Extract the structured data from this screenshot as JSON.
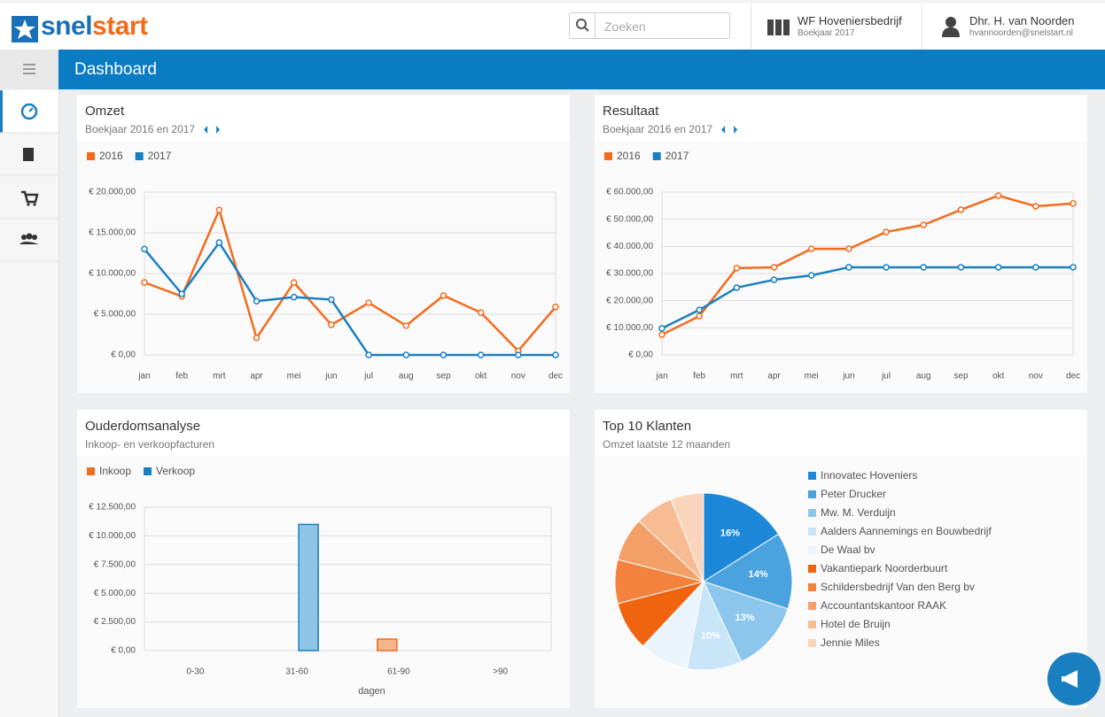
{
  "header": {
    "logo_part1": "snel",
    "logo_part2": "start",
    "search_placeholder": "Zoeken",
    "company": "WF Hoveniersbedrijf",
    "year": "Boekjaar 2017",
    "user": "Dhr. H. van Noorden",
    "email": "hvannoorden@snelstart.nl"
  },
  "page_title": "Dashboard",
  "chart_data": [
    {
      "type": "line",
      "title": "Omzet",
      "subtitle": "Boekjaar 2016 en 2017",
      "categories": [
        "jan",
        "feb",
        "mrt",
        "apr",
        "mei",
        "jun",
        "jul",
        "aug",
        "sep",
        "okt",
        "nov",
        "dec"
      ],
      "series": [
        {
          "name": "2016",
          "color": "#f26b1d",
          "values": [
            8900,
            7200,
            17800,
            2100,
            8900,
            3700,
            6400,
            3600,
            7300,
            5200,
            500,
            5900
          ]
        },
        {
          "name": "2017",
          "color": "#1a7fc1",
          "values": [
            13000,
            7500,
            13800,
            6600,
            7100,
            6800,
            0,
            0,
            0,
            0,
            0,
            0
          ]
        }
      ],
      "ylim": [
        0,
        20000
      ],
      "yticks": [
        {
          "value": 0,
          "label": "€ 0,00"
        },
        {
          "value": 5000,
          "label": "€ 5.000,00"
        },
        {
          "value": 10000,
          "label": "€ 10.000,00"
        },
        {
          "value": 15000,
          "label": "€ 15.000,00"
        },
        {
          "value": 20000,
          "label": "€ 20.000,00"
        }
      ],
      "grid": true
    },
    {
      "type": "line",
      "title": "Resultaat",
      "subtitle": "Boekjaar 2016 en 2017",
      "categories": [
        "jan",
        "feb",
        "mrt",
        "apr",
        "mei",
        "jun",
        "jul",
        "aug",
        "sep",
        "okt",
        "nov",
        "dec"
      ],
      "series": [
        {
          "name": "2016",
          "color": "#f26b1d",
          "values": [
            7500,
            14300,
            32000,
            32300,
            39100,
            39100,
            45300,
            47900,
            53500,
            58700,
            54800,
            55800
          ]
        },
        {
          "name": "2017",
          "color": "#1a7fc1",
          "values": [
            9800,
            16600,
            24800,
            27700,
            29300,
            32300,
            32300,
            32300,
            32300,
            32300,
            32300,
            32300
          ]
        }
      ],
      "ylim": [
        0,
        60000
      ],
      "yticks": [
        {
          "value": 0,
          "label": "€ 0,00"
        },
        {
          "value": 10000,
          "label": "€ 10.000,00"
        },
        {
          "value": 20000,
          "label": "€ 20.000,00"
        },
        {
          "value": 30000,
          "label": "€ 30.000,00"
        },
        {
          "value": 40000,
          "label": "€ 40.000,00"
        },
        {
          "value": 50000,
          "label": "€ 50.000,00"
        },
        {
          "value": 60000,
          "label": "€ 60.000,00"
        }
      ],
      "grid": true
    },
    {
      "type": "bar",
      "title": "Ouderdomsanalyse",
      "subtitle": "Inkoop- en verkoopfacturen",
      "xlabel": "dagen",
      "categories": [
        "0-30",
        "31-60",
        "61-90",
        ">90"
      ],
      "series": [
        {
          "name": "Inkoop",
          "color": "#f26b1d",
          "values": [
            0,
            0,
            1000,
            0
          ]
        },
        {
          "name": "Verkoop",
          "color": "#1a7fc1",
          "values": [
            0,
            11000,
            0,
            0
          ]
        }
      ],
      "ylim": [
        0,
        12500
      ],
      "yticks": [
        {
          "value": 0,
          "label": "€ 0,00"
        },
        {
          "value": 2500,
          "label": "€ 2.500,00"
        },
        {
          "value": 5000,
          "label": "€ 5.000,00"
        },
        {
          "value": 7500,
          "label": "€ 7.500,00"
        },
        {
          "value": 10000,
          "label": "€ 10.000,00"
        },
        {
          "value": 12500,
          "label": "€ 12.500,00"
        }
      ],
      "grid": true
    },
    {
      "type": "pie",
      "title": "Top 10 Klanten",
      "subtitle": "Omzet laatste 12 maanden",
      "categories": [
        "Innovatec Hoveniers",
        "Peter Drucker",
        "Mw. M. Verduijn",
        "Aalders Aannemings en Bouwbedrijf",
        "De Waal bv",
        "Vakantiepark Noorderbuurt",
        "Schildersbedrijf Van den Berg bv",
        "Accountantskantoor RAAK",
        "Hotel de Bruijn",
        "Jennie Miles"
      ],
      "values": [
        16,
        14,
        13,
        10,
        9,
        9,
        8,
        8,
        7,
        6
      ],
      "value_labels": [
        "16%",
        "14%",
        "13%",
        "10%",
        null,
        null,
        null,
        null,
        null,
        null
      ],
      "colors": [
        "#1e88d8",
        "#4aa3df",
        "#8cc6ec",
        "#c8e4f7",
        "#e9f4fc",
        "#f0640f",
        "#f3823c",
        "#f59f68",
        "#f8bc94",
        "#fad5bb"
      ]
    }
  ]
}
